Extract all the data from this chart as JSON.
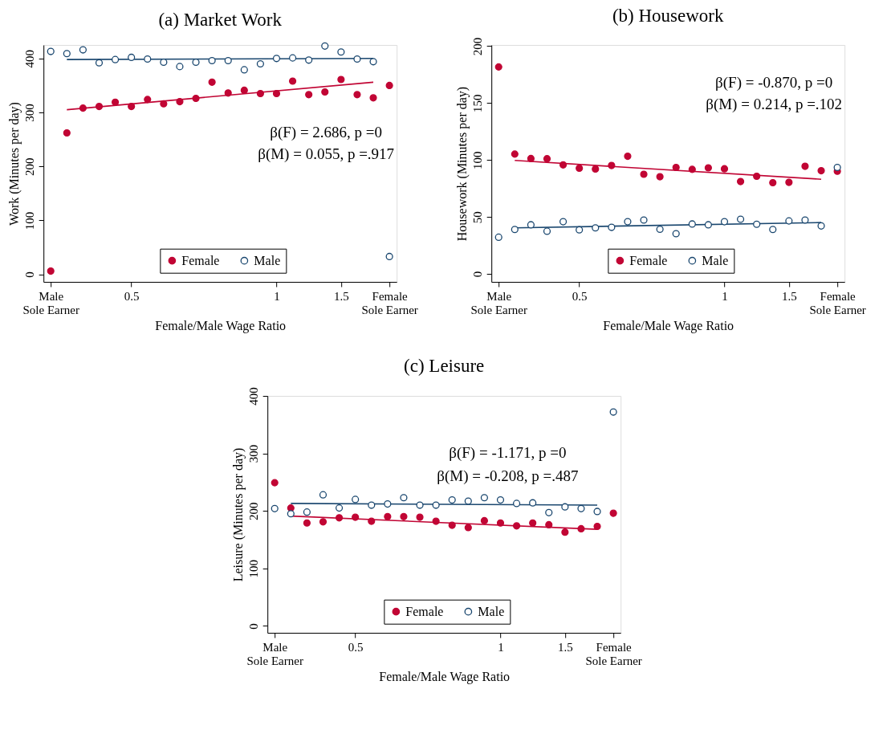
{
  "chart_data": [
    {
      "type": "scatter",
      "title": "(a) Market Work",
      "xlabel": "Female/Male Wage Ratio",
      "ylabel": "Work (Minutes per day)",
      "categories": [
        "Male\nSole Earner",
        null,
        null,
        null,
        null,
        "0.5",
        null,
        null,
        null,
        null,
        null,
        null,
        null,
        null,
        "1",
        null,
        null,
        null,
        "1.5",
        null,
        null,
        "Female\nSole Earner"
      ],
      "ylim": [
        -14,
        425
      ],
      "yticks": [
        0,
        100,
        200,
        300,
        400
      ],
      "legend": "bottom",
      "marker": "circle",
      "annotations": [
        "β(F) =  2.686,  p =0",
        "β(M) =  0.055,  p =.917"
      ],
      "series": [
        {
          "name": "Female",
          "color": "#c10534",
          "values": [
            6,
            262,
            308,
            311,
            319,
            311,
            324,
            316,
            320,
            326,
            356,
            336,
            341,
            335,
            335,
            358,
            333,
            338,
            361,
            333,
            327,
            350
          ]
        },
        {
          "name": "Male",
          "color": "#1a476f",
          "values": [
            413,
            409,
            416,
            392,
            398,
            402,
            399,
            393,
            385,
            393,
            396,
            396,
            379,
            390,
            400,
            401,
            397,
            423,
            412,
            399,
            394,
            33
          ]
        },
        {
          "type": "line",
          "marker": "none",
          "color": "#c10534",
          "values": [
            null,
            305,
            null,
            null,
            null,
            null,
            null,
            null,
            null,
            null,
            null,
            null,
            null,
            null,
            null,
            null,
            null,
            null,
            null,
            null,
            356,
            null
          ]
        },
        {
          "type": "line",
          "marker": "none",
          "color": "#1a476f",
          "values": [
            null,
            398,
            null,
            null,
            null,
            null,
            null,
            null,
            null,
            null,
            null,
            null,
            null,
            null,
            null,
            null,
            null,
            null,
            null,
            null,
            400,
            null
          ]
        }
      ]
    },
    {
      "type": "scatter",
      "title": "(b) Housework",
      "xlabel": "Female/Male Wage Ratio",
      "ylabel": "Housework (Minutes per day)",
      "categories": [
        "Male\nSole Earner",
        null,
        null,
        null,
        null,
        "0.5",
        null,
        null,
        null,
        null,
        null,
        null,
        null,
        null,
        "1",
        null,
        null,
        null,
        "1.5",
        null,
        null,
        "Female\nSole Earner"
      ],
      "ylim": [
        -7,
        201
      ],
      "yticks": [
        0,
        50,
        100,
        150,
        200
      ],
      "legend": "bottom",
      "marker": "circle",
      "annotations": [
        "β(F) = -0.870,  p =0",
        "β(M) =  0.214,  p =.102"
      ],
      "series": [
        {
          "name": "Female",
          "color": "#c10534",
          "values": [
            181.7,
            105.2,
            101.3,
            101.1,
            95.7,
            92.8,
            92.1,
            95.2,
            103.3,
            87.5,
            85.3,
            93.5,
            91.8,
            93.1,
            92.3,
            81.1,
            85.7,
            80.1,
            80.4,
            94.5,
            90.6,
            90.1
          ]
        },
        {
          "name": "Male",
          "color": "#1a476f",
          "values": [
            32.2,
            39,
            43.1,
            37.5,
            45.8,
            38.7,
            40.4,
            40.9,
            45.8,
            47.3,
            39.2,
            35.3,
            43.8,
            43.1,
            45.8,
            48,
            43.6,
            39,
            46.5,
            47.3,
            42.1,
            93.5
          ]
        },
        {
          "type": "line",
          "marker": "none",
          "color": "#c10534",
          "values": [
            null,
            99.6,
            null,
            null,
            null,
            null,
            null,
            null,
            null,
            null,
            null,
            null,
            null,
            null,
            null,
            null,
            null,
            null,
            null,
            null,
            83.1,
            null
          ]
        },
        {
          "type": "line",
          "marker": "none",
          "color": "#1a476f",
          "values": [
            null,
            40.4,
            null,
            null,
            null,
            null,
            null,
            null,
            null,
            null,
            null,
            null,
            null,
            null,
            null,
            null,
            null,
            null,
            null,
            null,
            45.1,
            null
          ]
        }
      ]
    },
    {
      "type": "scatter",
      "title": "(c) Leisure",
      "xlabel": "Female/Male Wage Ratio",
      "ylabel": "Leisure (Minutes per day)",
      "categories": [
        "Male\nSole Earner",
        null,
        null,
        null,
        null,
        "0.5",
        null,
        null,
        null,
        null,
        null,
        null,
        null,
        null,
        "1",
        null,
        null,
        null,
        "1.5",
        null,
        null,
        "Female\nSole Earner"
      ],
      "ylim": [
        -12,
        400
      ],
      "yticks": [
        0,
        100,
        200,
        300,
        400
      ],
      "legend": "bottom",
      "marker": "circle",
      "annotations": [
        "β(F) = -1.171,  p =0",
        "β(M) = -0.208,  p =.487"
      ],
      "series": [
        {
          "name": "Female",
          "color": "#c10534",
          "values": [
            249,
            205,
            179,
            181,
            188,
            189,
            182,
            190,
            190,
            189,
            182,
            175,
            171,
            183,
            179,
            174,
            179,
            176,
            163,
            169,
            173,
            196
          ]
        },
        {
          "name": "Male",
          "color": "#1a476f",
          "values": [
            204,
            195,
            198,
            228,
            205,
            220,
            210,
            212,
            223,
            210,
            210,
            219,
            217,
            223,
            219,
            213,
            214,
            197,
            207,
            204,
            199,
            372
          ]
        },
        {
          "type": "line",
          "marker": "none",
          "color": "#c10534",
          "values": [
            null,
            191,
            null,
            null,
            null,
            null,
            null,
            null,
            null,
            null,
            null,
            null,
            null,
            null,
            null,
            null,
            null,
            null,
            null,
            null,
            168,
            null
          ]
        },
        {
          "type": "line",
          "marker": "none",
          "color": "#1a476f",
          "values": [
            null,
            213,
            null,
            null,
            null,
            null,
            null,
            null,
            null,
            null,
            null,
            null,
            null,
            null,
            null,
            null,
            null,
            null,
            null,
            null,
            210,
            null
          ]
        }
      ]
    }
  ]
}
